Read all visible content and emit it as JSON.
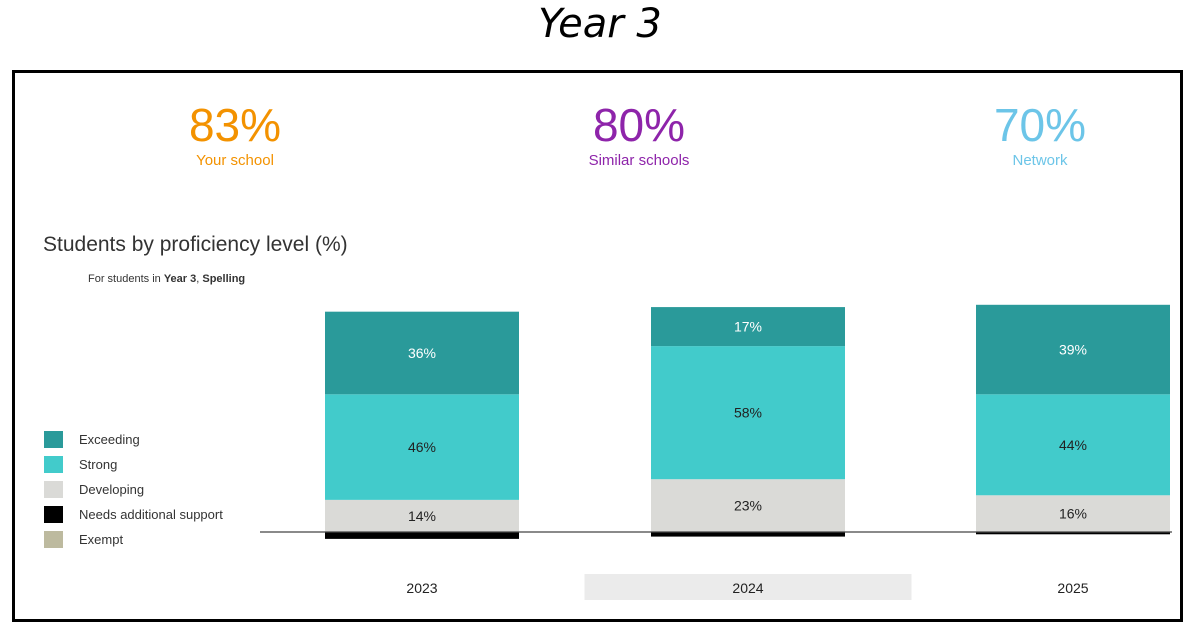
{
  "page": {
    "title": "Year 3"
  },
  "kpis": [
    {
      "value": "83%",
      "label": "Your school",
      "color": "#F39200"
    },
    {
      "value": "80%",
      "label": "Similar schools",
      "color": "#8E24AA"
    },
    {
      "value": "70%",
      "label": "Network",
      "color": "#6CC5E8"
    }
  ],
  "chart": {
    "title": "Students by proficiency level (%)",
    "subtitle_prefix": "For students in ",
    "subtitle_year": "Year 3",
    "subtitle_sep": ", ",
    "subtitle_subject": "Spelling"
  },
  "chart_data": {
    "type": "bar",
    "stacked": true,
    "categories": [
      "2023",
      "2024",
      "2025"
    ],
    "highlighted_category": "2024",
    "series": [
      {
        "name": "Exceeding",
        "color": "#2A9A9A",
        "values": [
          36,
          17,
          39
        ],
        "labels": [
          "36%",
          "17%",
          "39%"
        ]
      },
      {
        "name": "Strong",
        "color": "#42CBCB",
        "values": [
          46,
          58,
          44
        ],
        "labels": [
          "46%",
          "58%",
          "44%"
        ]
      },
      {
        "name": "Developing",
        "color": "#DADAD7",
        "values": [
          14,
          23,
          16
        ],
        "labels": [
          "14%",
          "23%",
          "16%"
        ]
      },
      {
        "name": "Needs additional support",
        "color": "#000000",
        "values": [
          3,
          2,
          1
        ],
        "labels": [
          "",
          "",
          ""
        ]
      },
      {
        "name": "Exempt",
        "color": "#BDBA9F",
        "values": [
          0,
          0,
          0
        ],
        "labels": [
          "",
          "",
          ""
        ]
      }
    ],
    "legend_position": "left",
    "grid": false
  }
}
